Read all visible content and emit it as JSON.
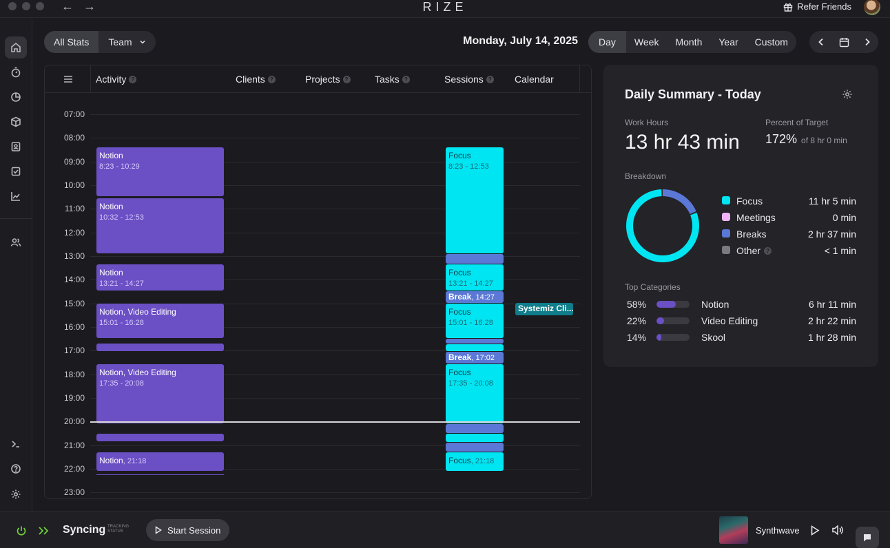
{
  "app": {
    "logo": "RIZE",
    "refer_label": "Refer Friends"
  },
  "header": {
    "scope_tabs": [
      "All Stats",
      "Team"
    ],
    "date_title": "Monday, July 14, 2025",
    "range_tabs": [
      "Day",
      "Week",
      "Month",
      "Year",
      "Custom"
    ],
    "active_range": "Day"
  },
  "timeline": {
    "columns": [
      "Activity",
      "Clients",
      "Projects",
      "Tasks",
      "Sessions",
      "Calendar"
    ],
    "hours": [
      "07:00",
      "08:00",
      "09:00",
      "10:00",
      "11:00",
      "12:00",
      "13:00",
      "14:00",
      "15:00",
      "16:00",
      "17:00",
      "18:00",
      "19:00",
      "20:00",
      "21:00",
      "22:00",
      "23:00"
    ],
    "activity_blocks": [
      {
        "title": "Notion",
        "time": "8:23 - 10:29"
      },
      {
        "title": "Notion",
        "time": "10:32 - 12:53"
      },
      {
        "title": "Notion",
        "time": "13:21 - 14:27"
      },
      {
        "title": "Notion, Video Editing",
        "time": "15:01 - 16:28"
      },
      {
        "title": "Notion, Video Editing",
        "time": "17:35 - 20:08"
      },
      {
        "title": "Notion",
        "time": "21:18"
      }
    ],
    "session_blocks": [
      {
        "title": "Focus",
        "time": "8:23 - 12:53"
      },
      {
        "title": "Focus",
        "time": "13:21 - 14:27"
      },
      {
        "title": "Break",
        "time": "14:27"
      },
      {
        "title": "Focus",
        "time": "15:01 - 16:28"
      },
      {
        "title": "Break",
        "time": "17:02"
      },
      {
        "title": "Focus",
        "time": "17:35 - 20:08"
      },
      {
        "title": "Focus",
        "time": "21:18"
      }
    ],
    "calendar_event": "Systemiz Cli..."
  },
  "summary": {
    "title": "Daily Summary - Today",
    "work_hours_label": "Work Hours",
    "work_hours_value": "13 hr 43 min",
    "percent_label": "Percent of Target",
    "percent_value": "172%",
    "percent_of": "of 8 hr 0 min",
    "breakdown_label": "Breakdown",
    "breakdown": [
      {
        "name": "Focus",
        "value": "11 hr 5 min",
        "color": "#00e5f2",
        "minutes": 665
      },
      {
        "name": "Meetings",
        "value": "0 min",
        "color": "#f0b4f6",
        "minutes": 0
      },
      {
        "name": "Breaks",
        "value": "2 hr 37 min",
        "color": "#5b78d6",
        "minutes": 157
      },
      {
        "name": "Other",
        "value": "< 1 min",
        "color": "#7a7a80",
        "minutes": 0.5
      }
    ],
    "top_categories_label": "Top Categories",
    "top_categories": [
      {
        "pct": "58%",
        "fraction": 0.58,
        "name": "Notion",
        "value": "6 hr 11 min"
      },
      {
        "pct": "22%",
        "fraction": 0.22,
        "name": "Video Editing",
        "value": "2 hr 22 min"
      },
      {
        "pct": "14%",
        "fraction": 0.14,
        "name": "Skool",
        "value": "1 hr 28 min"
      }
    ]
  },
  "bottom": {
    "status": "Syncing",
    "status_caption_1": "TRACKING",
    "status_caption_2": "STATUS",
    "start_label": "Start Session",
    "track_name": "Synthwave"
  }
}
